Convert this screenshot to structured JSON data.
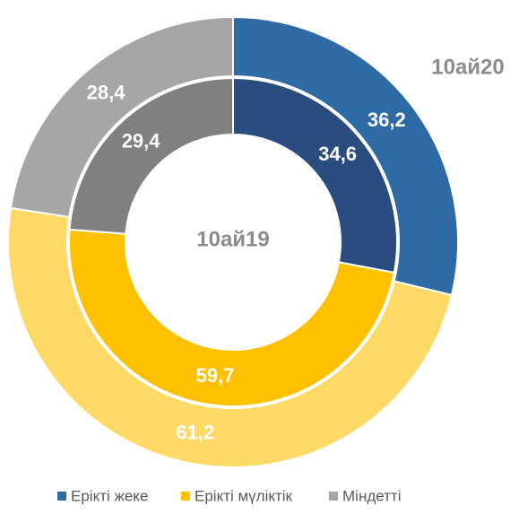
{
  "chart_data": {
    "type": "donut",
    "categories": [
      "Ерікті жеке",
      "Ерікті мүліктік",
      "Міндетті"
    ],
    "legend_colors": [
      "#2e6aa3",
      "#ffc000",
      "#a6a6a6"
    ],
    "series": [
      {
        "name": "10ай19",
        "values": [
          34.6,
          59.7,
          29.4
        ],
        "value_labels": [
          "34,6",
          "59,7",
          "29,4"
        ],
        "colors": [
          "#2b4c7e",
          "#ffc000",
          "#808080"
        ]
      },
      {
        "name": "10ай20",
        "values": [
          36.2,
          61.2,
          28.4
        ],
        "value_labels": [
          "36,2",
          "61,2",
          "28,4"
        ],
        "colors": [
          "#2e6aa3",
          "#ffd966",
          "#a6a6a6"
        ]
      }
    ],
    "legend": "bottom"
  }
}
